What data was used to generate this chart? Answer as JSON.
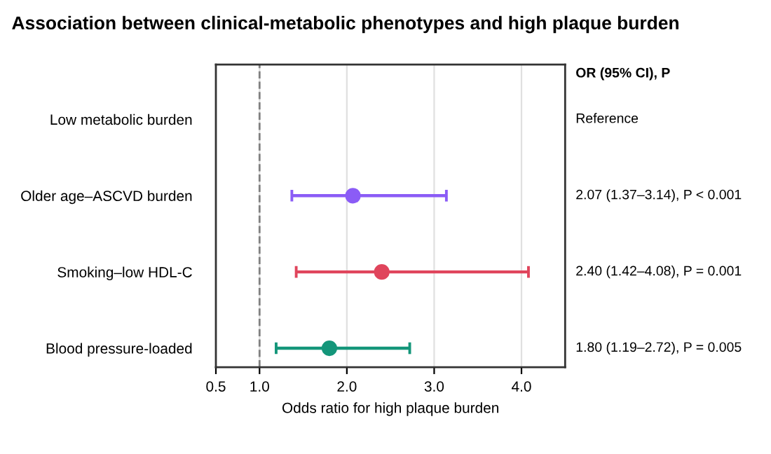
{
  "chart_data": {
    "type": "scatter",
    "orientation": "horizontal",
    "title": "Association between clinical-metabolic phenotypes and high plaque burden",
    "xlabel": "Odds ratio for high plaque burden",
    "categories": [
      "Low metabolic burden",
      "Older age–ASCVD burden",
      "Smoking–low HDL-C",
      "Blood pressure-loaded"
    ],
    "values": [
      null,
      2.07,
      2.4,
      1.8
    ],
    "errors": [
      null,
      [
        1.37,
        3.14
      ],
      [
        1.42,
        4.08
      ],
      [
        1.19,
        2.72
      ]
    ],
    "colors": [
      null,
      "#8b5cf6",
      "#e0455c",
      "#14967a"
    ],
    "value_labels": [
      "Reference",
      "2.07 (1.37–3.14), P < 0.001",
      "2.40 (1.42–4.08), P = 0.001",
      "1.80 (1.19–2.72), P = 0.005"
    ],
    "annotations": [
      "OR (95% CI), P"
    ],
    "xlim": [
      0.5,
      4.5
    ],
    "xticks": [
      {
        "value": 0.5,
        "label": "0.5"
      },
      {
        "value": 1,
        "label": "1.0"
      },
      {
        "value": 2,
        "label": "2.0"
      },
      {
        "value": 3,
        "label": "3.0"
      },
      {
        "value": 4,
        "label": "4.0"
      }
    ],
    "ref_lines": [
      {
        "axis": "x",
        "value": 1,
        "color": "#808080",
        "line_style": "dashed"
      }
    ],
    "grid": "x",
    "marker": "circle",
    "legend": false
  }
}
